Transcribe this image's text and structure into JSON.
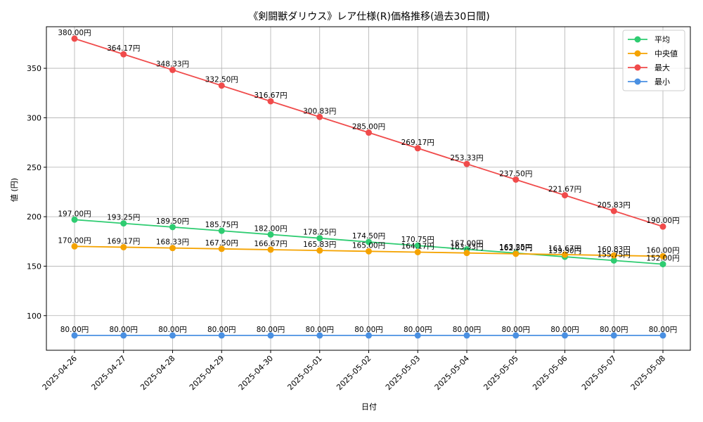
{
  "chart_data": {
    "type": "line",
    "title": "《剣闘獣ダリウス》レア仕様(R)価格推移(過去30日間)",
    "xlabel": "日付",
    "ylabel": "値 (円)",
    "categories": [
      "2025-04-26",
      "2025-04-27",
      "2025-04-28",
      "2025-04-29",
      "2025-04-30",
      "2025-05-01",
      "2025-05-02",
      "2025-05-03",
      "2025-05-04",
      "2025-05-05",
      "2025-05-06",
      "2025-05-07",
      "2025-05-08"
    ],
    "ylim": [
      65,
      392
    ],
    "yticks": [
      100,
      150,
      200,
      250,
      300,
      350
    ],
    "grid": true,
    "legend_position": "top-right",
    "value_suffix": "円",
    "series": [
      {
        "name": "平均",
        "color": "#2ecc71",
        "values": [
          197.0,
          193.25,
          189.5,
          185.75,
          182.0,
          178.25,
          174.5,
          170.75,
          167.0,
          163.25,
          159.5,
          155.75,
          152.0
        ]
      },
      {
        "name": "中央値",
        "color": "#f5a300",
        "values": [
          170.0,
          169.17,
          168.33,
          167.5,
          166.67,
          165.83,
          165.0,
          164.17,
          163.33,
          162.5,
          161.67,
          160.83,
          160.0
        ]
      },
      {
        "name": "最大",
        "color": "#f04b4b",
        "values": [
          380.0,
          364.17,
          348.33,
          332.5,
          316.67,
          300.83,
          285.0,
          269.17,
          253.33,
          237.5,
          221.67,
          205.83,
          190.0
        ]
      },
      {
        "name": "最小",
        "color": "#4a90e2",
        "values": [
          80.0,
          80.0,
          80.0,
          80.0,
          80.0,
          80.0,
          80.0,
          80.0,
          80.0,
          80.0,
          80.0,
          80.0,
          80.0
        ]
      }
    ]
  }
}
